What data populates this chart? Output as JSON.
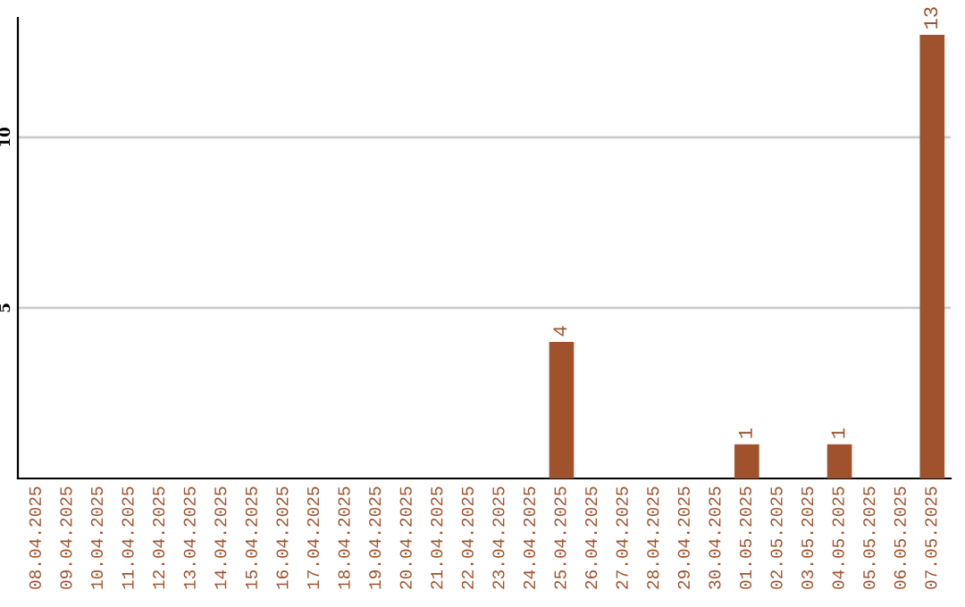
{
  "chart_data": {
    "type": "bar",
    "categories": [
      "08.04.2025",
      "09.04.2025",
      "10.04.2025",
      "11.04.2025",
      "12.04.2025",
      "13.04.2025",
      "14.04.2025",
      "15.04.2025",
      "16.04.2025",
      "17.04.2025",
      "18.04.2025",
      "19.04.2025",
      "20.04.2025",
      "21.04.2025",
      "22.04.2025",
      "23.04.2025",
      "24.04.2025",
      "25.04.2025",
      "26.04.2025",
      "27.04.2025",
      "28.04.2025",
      "29.04.2025",
      "30.04.2025",
      "01.05.2025",
      "02.05.2025",
      "03.05.2025",
      "04.05.2025",
      "05.05.2025",
      "06.05.2025",
      "07.05.2025"
    ],
    "values": [
      0,
      0,
      0,
      0,
      0,
      0,
      0,
      0,
      0,
      0,
      0,
      0,
      0,
      0,
      0,
      0,
      0,
      4,
      0,
      0,
      0,
      0,
      0,
      1,
      0,
      0,
      1,
      0,
      0,
      13
    ],
    "value_labels": [
      null,
      null,
      null,
      null,
      null,
      null,
      null,
      null,
      null,
      null,
      null,
      null,
      null,
      null,
      null,
      null,
      null,
      "4",
      null,
      null,
      null,
      null,
      null,
      "1",
      null,
      null,
      "1",
      null,
      null,
      "13"
    ],
    "color": "#a0522d",
    "ylim": [
      0,
      13.5
    ],
    "yticks": [
      5,
      10
    ],
    "grid": "y"
  }
}
